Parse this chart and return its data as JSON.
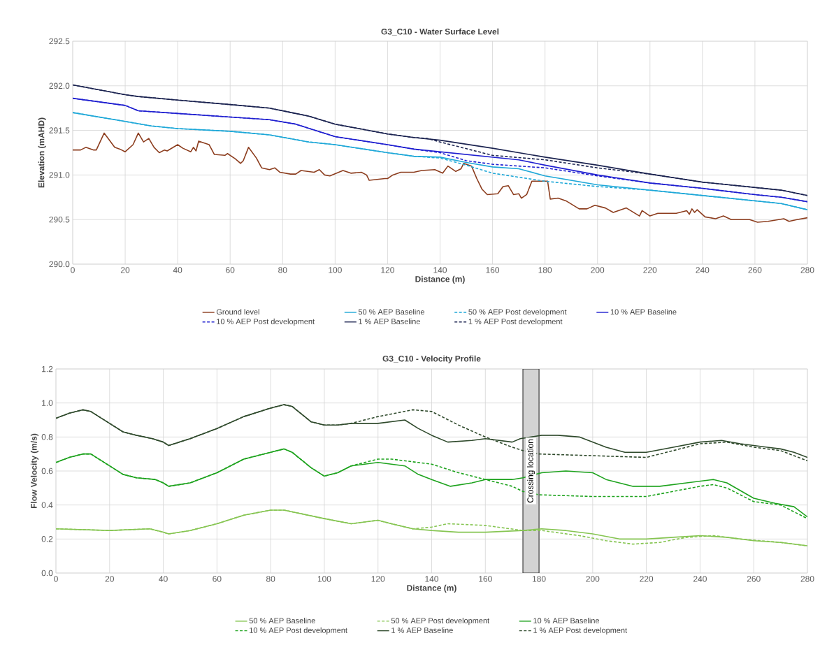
{
  "chart_data": [
    {
      "type": "line",
      "title": "G3_C10 - Water Surface Level",
      "xlabel": "Distance (m)",
      "ylabel": "Elevation (mAHD)",
      "xlim": [
        0,
        280
      ],
      "xticks": [
        0,
        20,
        40,
        60,
        80,
        100,
        120,
        140,
        160,
        180,
        200,
        220,
        240,
        260,
        280
      ],
      "ylim": [
        290,
        292.5
      ],
      "yticks": [
        {
          "value": 290,
          "label": "290.0"
        },
        290.5,
        {
          "value": 291,
          "label": "291.0"
        },
        291.5,
        {
          "value": 292,
          "label": "292.0"
        },
        292.5
      ],
      "grid": true,
      "legend": "bottom",
      "series": [
        {
          "name": "Ground level",
          "color": "#8c3d1e",
          "x": [
            0,
            3,
            5,
            8,
            9,
            12,
            16,
            18,
            20,
            23,
            25,
            27,
            29,
            31,
            33,
            35,
            36,
            40,
            42,
            45,
            46,
            47,
            48,
            52,
            54,
            58,
            59,
            62,
            64,
            65,
            67,
            70,
            72,
            75,
            77,
            79,
            83,
            85,
            87,
            92,
            94,
            96,
            98,
            103,
            106,
            110,
            112,
            113,
            116,
            119,
            120,
            122,
            125,
            130,
            133,
            138,
            141,
            143,
            146,
            148,
            149,
            152,
            154,
            156,
            158,
            162,
            164,
            166,
            168,
            170,
            171,
            173,
            175,
            181,
            182,
            185,
            188,
            193,
            196,
            199,
            203,
            206,
            211,
            216,
            217,
            220,
            223,
            230,
            234,
            235,
            236,
            237,
            238,
            241,
            245,
            248,
            251,
            255,
            258,
            261,
            265,
            271,
            273,
            276,
            280
          ],
          "values": [
            291.28,
            291.28,
            291.31,
            291.28,
            291.28,
            291.47,
            291.31,
            291.29,
            291.26,
            291.34,
            291.47,
            291.37,
            291.41,
            291.31,
            291.25,
            291.28,
            291.27,
            291.34,
            291.3,
            291.26,
            291.31,
            291.27,
            291.38,
            291.34,
            291.23,
            291.22,
            291.24,
            291.18,
            291.13,
            291.16,
            291.31,
            291.19,
            291.08,
            291.06,
            291.08,
            291.03,
            291.01,
            291.01,
            291.05,
            291.03,
            291.06,
            291.0,
            290.99,
            291.05,
            291.02,
            291.03,
            291.0,
            290.94,
            290.95,
            290.96,
            290.96,
            291.0,
            291.03,
            291.03,
            291.05,
            291.06,
            291.02,
            291.1,
            291.04,
            291.07,
            291.13,
            291.1,
            290.96,
            290.84,
            290.78,
            290.79,
            290.87,
            290.88,
            290.78,
            290.79,
            290.74,
            290.78,
            290.93,
            290.93,
            290.73,
            290.74,
            290.71,
            290.62,
            290.62,
            290.66,
            290.63,
            290.58,
            290.63,
            290.54,
            290.6,
            290.54,
            290.57,
            290.57,
            290.6,
            290.56,
            290.62,
            290.58,
            290.61,
            290.53,
            290.51,
            290.54,
            290.5,
            290.5,
            290.5,
            290.47,
            290.48,
            290.51,
            290.48,
            290.5,
            290.52
          ]
        },
        {
          "name": "50 % AEP Baseline",
          "color": "#1fa8d8",
          "x": [
            0,
            20,
            30,
            40,
            60,
            75,
            90,
            100,
            120,
            130,
            140,
            150,
            160,
            170,
            180,
            200,
            220,
            240,
            260,
            270,
            280
          ],
          "values": [
            291.7,
            291.6,
            291.55,
            291.52,
            291.49,
            291.45,
            291.37,
            291.34,
            291.25,
            291.21,
            291.2,
            291.14,
            291.09,
            291.07,
            290.99,
            290.89,
            290.83,
            290.77,
            290.71,
            290.68,
            290.61
          ]
        },
        {
          "name": "50 % AEP Post development",
          "color": "#1fa8d8",
          "line_style": "dashed",
          "x": [
            0,
            20,
            30,
            40,
            60,
            75,
            90,
            100,
            120,
            130,
            140,
            150,
            160,
            180,
            200,
            220,
            240,
            260,
            270,
            280
          ],
          "values": [
            291.7,
            291.6,
            291.55,
            291.52,
            291.49,
            291.45,
            291.37,
            291.34,
            291.25,
            291.21,
            291.19,
            291.11,
            291.02,
            290.93,
            290.87,
            290.83,
            290.77,
            290.71,
            290.68,
            290.61
          ]
        },
        {
          "name": "10 % AEP Baseline",
          "color": "#2020d0",
          "x": [
            0,
            20,
            25,
            40,
            60,
            75,
            85,
            100,
            120,
            130,
            140,
            160,
            170,
            180,
            200,
            220,
            240,
            260,
            270,
            280
          ],
          "values": [
            291.86,
            291.78,
            291.72,
            291.69,
            291.65,
            291.62,
            291.57,
            291.43,
            291.34,
            291.29,
            291.26,
            291.2,
            291.17,
            291.11,
            291.0,
            290.91,
            290.85,
            290.78,
            290.75,
            290.7
          ]
        },
        {
          "name": "10 % AEP Post development",
          "color": "#2020d0",
          "line_style": "dashed",
          "x": [
            0,
            20,
            25,
            40,
            60,
            75,
            85,
            100,
            120,
            130,
            140,
            150,
            160,
            180,
            200,
            220,
            240,
            260,
            270,
            280
          ],
          "values": [
            291.86,
            291.78,
            291.72,
            291.69,
            291.65,
            291.62,
            291.57,
            291.43,
            291.34,
            291.29,
            291.25,
            291.16,
            291.12,
            291.08,
            290.99,
            290.91,
            290.85,
            290.78,
            290.75,
            290.7
          ]
        },
        {
          "name": "1 % AEP Baseline",
          "color": "#1c2451",
          "x": [
            0,
            20,
            25,
            40,
            60,
            75,
            85,
            90,
            100,
            120,
            130,
            140,
            160,
            180,
            200,
            220,
            240,
            260,
            270,
            280
          ],
          "values": [
            292.01,
            291.9,
            291.88,
            291.84,
            291.79,
            291.75,
            291.69,
            291.66,
            291.57,
            291.46,
            291.42,
            291.39,
            291.3,
            291.2,
            291.11,
            291.01,
            290.92,
            290.86,
            290.83,
            290.77
          ]
        },
        {
          "name": "1 % AEP Post development",
          "color": "#1c2451",
          "line_style": "dashed",
          "x": [
            0,
            20,
            25,
            40,
            60,
            75,
            85,
            90,
            100,
            120,
            130,
            135,
            140,
            160,
            180,
            200,
            220,
            240,
            260,
            270,
            280
          ],
          "values": [
            292.01,
            291.9,
            291.88,
            291.84,
            291.79,
            291.75,
            291.69,
            291.66,
            291.57,
            291.46,
            291.42,
            291.41,
            291.37,
            291.22,
            291.17,
            291.08,
            291.01,
            290.92,
            290.86,
            290.83,
            290.77
          ]
        }
      ]
    },
    {
      "type": "line",
      "title": "G3_C10 - Velocity Profile",
      "xlabel": "Distance (m)",
      "ylabel": "Flow Velocity (m/s)",
      "xlim": [
        0,
        280
      ],
      "xticks": [
        0,
        20,
        40,
        60,
        80,
        100,
        120,
        140,
        160,
        180,
        200,
        220,
        240,
        260,
        280
      ],
      "ylim": [
        0,
        1.2
      ],
      "yticks": [
        {
          "value": 0,
          "label": "0.0"
        },
        0.2,
        0.4,
        0.6,
        0.8,
        {
          "value": 1,
          "label": "1.0"
        },
        1.2
      ],
      "grid": true,
      "legend": "bottom",
      "bands": [
        {
          "axis": "x",
          "from": 174,
          "to": 180,
          "label": "Crossing location",
          "color": "#d3d3d3"
        }
      ],
      "series": [
        {
          "name": "50 % AEP Baseline",
          "color": "#86c552",
          "x": [
            0,
            20,
            35,
            40,
            42,
            50,
            60,
            70,
            80,
            85,
            100,
            110,
            120,
            125,
            133,
            140,
            150,
            160,
            174,
            181,
            190,
            200,
            210,
            220,
            230,
            240,
            250,
            260,
            270,
            280
          ],
          "values": [
            0.26,
            0.25,
            0.26,
            0.24,
            0.23,
            0.25,
            0.29,
            0.34,
            0.37,
            0.37,
            0.32,
            0.29,
            0.31,
            0.29,
            0.26,
            0.25,
            0.24,
            0.24,
            0.25,
            0.26,
            0.25,
            0.23,
            0.2,
            0.2,
            0.21,
            0.22,
            0.21,
            0.19,
            0.18,
            0.16
          ]
        },
        {
          "name": "50 % AEP Post development",
          "color": "#86c552",
          "line_style": "dashed",
          "x": [
            0,
            20,
            35,
            40,
            42,
            50,
            60,
            70,
            80,
            85,
            100,
            110,
            120,
            125,
            133,
            140,
            146,
            160,
            174,
            181,
            195,
            205,
            215,
            225,
            235,
            245,
            255,
            270,
            280
          ],
          "values": [
            0.26,
            0.25,
            0.26,
            0.24,
            0.23,
            0.25,
            0.29,
            0.34,
            0.37,
            0.37,
            0.32,
            0.29,
            0.31,
            0.29,
            0.26,
            0.27,
            0.29,
            0.28,
            0.25,
            0.25,
            0.22,
            0.19,
            0.17,
            0.18,
            0.21,
            0.22,
            0.2,
            0.18,
            0.16
          ]
        },
        {
          "name": "10 % AEP Baseline",
          "color": "#1ea31e",
          "x": [
            0,
            5,
            10,
            13,
            20,
            25,
            30,
            37,
            40,
            42,
            50,
            60,
            70,
            80,
            85,
            88,
            95,
            100,
            105,
            110,
            120,
            130,
            135,
            140,
            147,
            155,
            160,
            170,
            174,
            181,
            190,
            200,
            205,
            215,
            225,
            235,
            245,
            250,
            260,
            268,
            275,
            280
          ],
          "values": [
            0.65,
            0.68,
            0.7,
            0.7,
            0.63,
            0.58,
            0.56,
            0.55,
            0.53,
            0.51,
            0.53,
            0.59,
            0.67,
            0.71,
            0.73,
            0.71,
            0.62,
            0.57,
            0.59,
            0.63,
            0.65,
            0.63,
            0.58,
            0.55,
            0.51,
            0.53,
            0.55,
            0.55,
            0.56,
            0.59,
            0.6,
            0.59,
            0.55,
            0.51,
            0.51,
            0.53,
            0.55,
            0.53,
            0.44,
            0.41,
            0.39,
            0.33
          ]
        },
        {
          "name": "10 % AEP Post development",
          "color": "#1ea31e",
          "line_style": "dashed",
          "x": [
            0,
            5,
            10,
            13,
            20,
            25,
            30,
            37,
            40,
            42,
            50,
            60,
            70,
            80,
            85,
            88,
            95,
            100,
            105,
            110,
            120,
            125,
            135,
            140,
            150,
            160,
            170,
            174,
            180,
            200,
            220,
            230,
            240,
            245,
            250,
            260,
            270,
            280
          ],
          "values": [
            0.65,
            0.68,
            0.7,
            0.7,
            0.63,
            0.58,
            0.56,
            0.55,
            0.53,
            0.51,
            0.53,
            0.59,
            0.67,
            0.71,
            0.73,
            0.71,
            0.62,
            0.57,
            0.59,
            0.63,
            0.67,
            0.67,
            0.65,
            0.64,
            0.59,
            0.55,
            0.51,
            0.48,
            0.46,
            0.45,
            0.45,
            0.48,
            0.51,
            0.52,
            0.5,
            0.42,
            0.4,
            0.32
          ]
        },
        {
          "name": "1 % AEP Baseline",
          "color": "#2f4a2c",
          "x": [
            0,
            5,
            10,
            13,
            20,
            25,
            30,
            36,
            40,
            42,
            50,
            60,
            70,
            80,
            85,
            88,
            95,
            100,
            105,
            110,
            120,
            130,
            135,
            140,
            146,
            155,
            160,
            170,
            173,
            181,
            187,
            195,
            205,
            212,
            220,
            230,
            240,
            248,
            255,
            265,
            270,
            275,
            280
          ],
          "values": [
            0.91,
            0.94,
            0.96,
            0.95,
            0.88,
            0.83,
            0.81,
            0.79,
            0.77,
            0.75,
            0.79,
            0.85,
            0.92,
            0.97,
            0.99,
            0.98,
            0.89,
            0.87,
            0.87,
            0.88,
            0.88,
            0.9,
            0.85,
            0.81,
            0.77,
            0.78,
            0.79,
            0.77,
            0.79,
            0.81,
            0.81,
            0.8,
            0.74,
            0.71,
            0.71,
            0.74,
            0.77,
            0.78,
            0.76,
            0.74,
            0.73,
            0.71,
            0.68
          ]
        },
        {
          "name": "1 % AEP Post development",
          "color": "#2f4a2c",
          "line_style": "dashed",
          "x": [
            0,
            5,
            10,
            13,
            20,
            25,
            30,
            36,
            40,
            42,
            50,
            60,
            70,
            80,
            85,
            88,
            95,
            100,
            105,
            110,
            120,
            133,
            140,
            150,
            160,
            170,
            174,
            180,
            200,
            220,
            230,
            240,
            250,
            260,
            270,
            280
          ],
          "values": [
            0.91,
            0.94,
            0.96,
            0.95,
            0.88,
            0.83,
            0.81,
            0.79,
            0.77,
            0.75,
            0.79,
            0.85,
            0.92,
            0.97,
            0.99,
            0.98,
            0.89,
            0.87,
            0.87,
            0.88,
            0.92,
            0.96,
            0.95,
            0.87,
            0.8,
            0.74,
            0.72,
            0.7,
            0.69,
            0.68,
            0.72,
            0.76,
            0.77,
            0.74,
            0.72,
            0.66
          ]
        }
      ]
    }
  ]
}
